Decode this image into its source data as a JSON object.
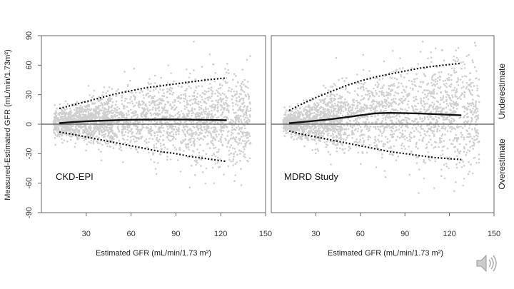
{
  "chart_data": [
    {
      "type": "scatter",
      "panel_label": "CKD-EPI",
      "xlabel": "Estimated GFR (mL/min/1.73 m²)",
      "ylabel": "Measured-Estimated GFR (mL/min/1.73m²)",
      "xlim": [
        0,
        150
      ],
      "ylim": [
        -90,
        90
      ],
      "xticks": [
        "30",
        "60",
        "90",
        "120",
        "150"
      ],
      "yticks": [
        "90",
        "60",
        "30",
        "0",
        "-30",
        "-60",
        "-90"
      ],
      "reference_line_y": 0,
      "point_color": "#cfcfcf",
      "series": [
        {
          "style": "solid",
          "x": [
            12,
            20,
            30,
            40,
            50,
            60,
            70,
            80,
            90,
            100,
            110,
            124
          ],
          "y": [
            1,
            2,
            3,
            3.5,
            4,
            4.5,
            4.6,
            4.7,
            4.7,
            4.6,
            4.4,
            4
          ]
        },
        {
          "style": "dotted-upper",
          "x": [
            12,
            20,
            30,
            40,
            50,
            60,
            70,
            80,
            90,
            100,
            110,
            124
          ],
          "y": [
            16,
            19,
            23,
            27,
            31,
            34,
            37,
            39,
            41,
            43,
            45,
            47
          ]
        },
        {
          "style": "dotted-lower",
          "x": [
            12,
            20,
            30,
            40,
            50,
            60,
            70,
            80,
            90,
            100,
            110,
            124
          ],
          "y": [
            -8,
            -10,
            -13,
            -16,
            -19,
            -22,
            -25,
            -28,
            -30,
            -33,
            -35,
            -38
          ]
        }
      ]
    },
    {
      "type": "scatter",
      "panel_label": "MDRD Study",
      "xlabel": "Estimated GFR (mL/min/1.73 m²)",
      "xlim": [
        0,
        150
      ],
      "ylim": [
        -90,
        90
      ],
      "xticks": [
        "30",
        "60",
        "90",
        "120",
        "150"
      ],
      "reference_line_y": 0,
      "point_color": "#cfcfcf",
      "series": [
        {
          "style": "solid",
          "x": [
            12,
            20,
            30,
            40,
            50,
            60,
            70,
            80,
            90,
            100,
            110,
            128
          ],
          "y": [
            1,
            2,
            3.5,
            5,
            7,
            9,
            11,
            11.5,
            11.2,
            10.8,
            10.2,
            9
          ]
        },
        {
          "style": "dotted-upper",
          "x": [
            12,
            20,
            30,
            40,
            50,
            60,
            70,
            80,
            90,
            100,
            110,
            128
          ],
          "y": [
            14,
            20,
            27,
            33,
            39,
            44,
            48,
            51,
            54,
            57,
            59,
            62
          ]
        },
        {
          "style": "dotted-lower",
          "x": [
            12,
            20,
            30,
            40,
            50,
            60,
            70,
            80,
            90,
            100,
            110,
            128
          ],
          "y": [
            -7,
            -10,
            -13,
            -16,
            -19,
            -22,
            -25,
            -28,
            -30,
            -32,
            -34,
            -36
          ]
        }
      ]
    }
  ],
  "side_labels": {
    "top": "Underestimate",
    "bottom": "Overestimate"
  },
  "icons": {
    "audio": "speaker-icon"
  }
}
